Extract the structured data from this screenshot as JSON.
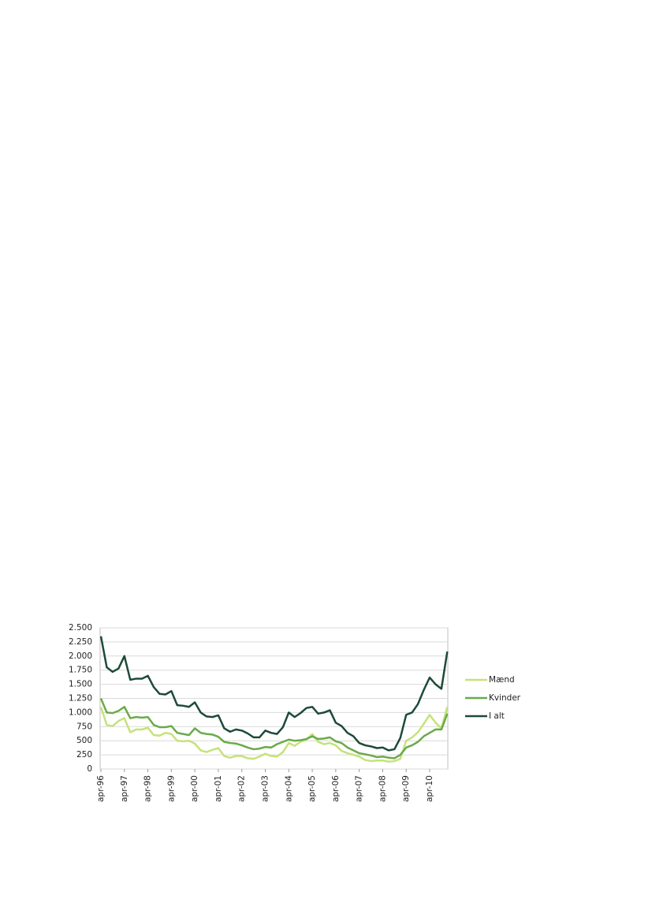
{
  "chart_data": {
    "type": "line",
    "categories": [
      "apr-96",
      null,
      null,
      null,
      "apr-97",
      null,
      null,
      null,
      "apr-98",
      null,
      null,
      null,
      "apr-99",
      null,
      null,
      null,
      "apr-00",
      null,
      null,
      null,
      "apr-01",
      null,
      null,
      null,
      "apr-02",
      null,
      null,
      null,
      "apr-03",
      null,
      null,
      null,
      "apr-04",
      null,
      null,
      null,
      "apr-05",
      null,
      null,
      null,
      "apr-06",
      null,
      null,
      null,
      "apr-07",
      null,
      null,
      null,
      "apr-08",
      null,
      null,
      null,
      "apr-09",
      null,
      null,
      null,
      "apr-10",
      null,
      null,
      null
    ],
    "series": [
      {
        "name": "Mænd",
        "color": "#c6e27a",
        "values": [
          1100,
          780,
          760,
          850,
          900,
          650,
          700,
          700,
          730,
          600,
          590,
          640,
          620,
          500,
          490,
          500,
          450,
          330,
          300,
          340,
          370,
          230,
          200,
          230,
          230,
          190,
          180,
          220,
          270,
          230,
          220,
          300,
          460,
          410,
          480,
          520,
          620,
          480,
          440,
          460,
          420,
          320,
          280,
          250,
          220,
          160,
          140,
          150,
          150,
          130,
          140,
          180,
          500,
          560,
          650,
          800,
          960,
          820,
          720,
          1100
        ]
      },
      {
        "name": "Kvinder",
        "color": "#6aaa4a",
        "values": [
          1250,
          1000,
          990,
          1030,
          1100,
          900,
          920,
          910,
          920,
          780,
          740,
          740,
          760,
          640,
          620,
          600,
          720,
          640,
          620,
          610,
          570,
          480,
          460,
          450,
          420,
          380,
          350,
          360,
          390,
          380,
          440,
          480,
          520,
          500,
          510,
          530,
          580,
          530,
          540,
          560,
          490,
          460,
          380,
          330,
          280,
          260,
          240,
          210,
          220,
          200,
          190,
          250,
          380,
          420,
          480,
          580,
          640,
          700,
          700,
          980
        ]
      },
      {
        "name": "I alt",
        "color": "#1e4a38",
        "values": [
          2350,
          1800,
          1720,
          1780,
          2000,
          1580,
          1600,
          1600,
          1650,
          1450,
          1330,
          1320,
          1380,
          1130,
          1120,
          1100,
          1180,
          1000,
          930,
          920,
          950,
          720,
          660,
          700,
          680,
          630,
          560,
          560,
          680,
          640,
          620,
          740,
          1000,
          920,
          990,
          1080,
          1100,
          980,
          1000,
          1040,
          820,
          760,
          640,
          580,
          460,
          420,
          400,
          370,
          380,
          330,
          350,
          550,
          960,
          1000,
          1150,
          1400,
          1620,
          1500,
          1420,
          2080
        ]
      }
    ],
    "ylim": [
      0,
      2500
    ],
    "yticks": [
      0,
      250,
      500,
      750,
      {
        "value": 1000,
        "label": "1.000"
      },
      {
        "value": 1250,
        "label": "1.250"
      },
      {
        "value": 1500,
        "label": "1.500"
      },
      {
        "value": 1750,
        "label": "1.750"
      },
      {
        "value": 2000,
        "label": "2.000"
      },
      {
        "value": 2250,
        "label": "2.250"
      },
      {
        "value": 2500,
        "label": "2.500"
      }
    ],
    "grid": true,
    "legend": "right"
  }
}
